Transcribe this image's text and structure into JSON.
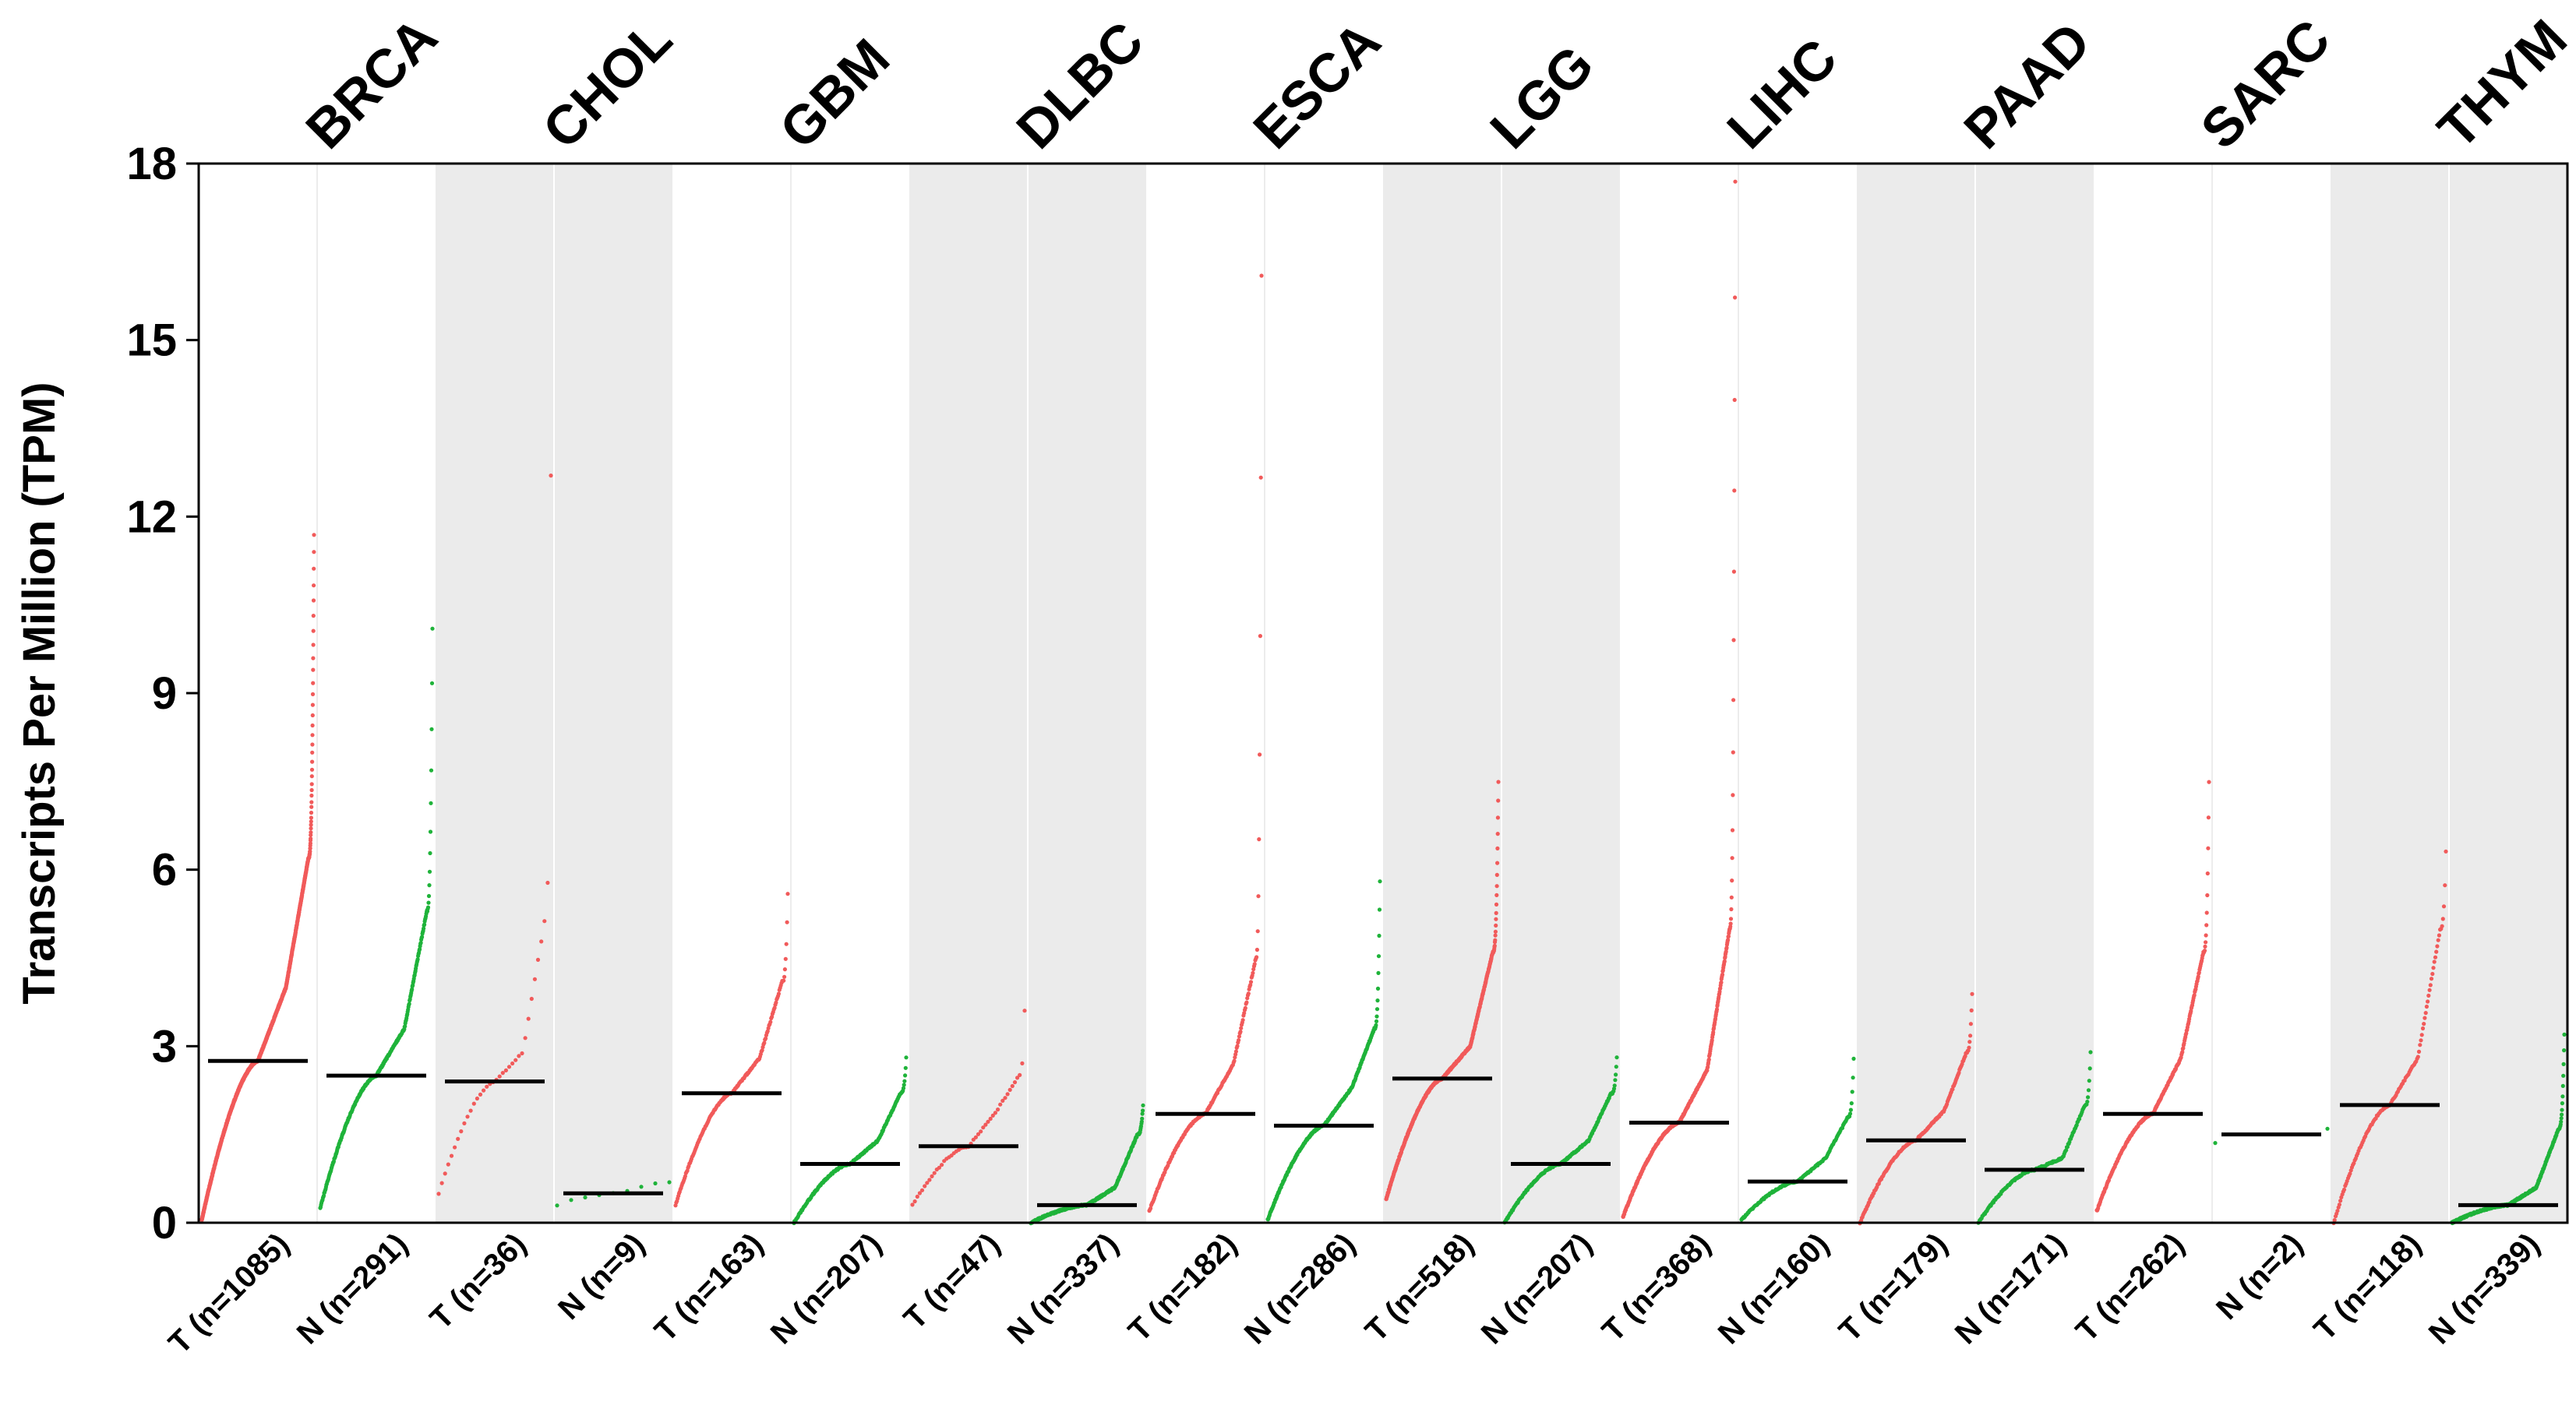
{
  "chart_data": {
    "type": "scatter",
    "subtype": "sorted-dot-strip",
    "title": "",
    "xlabel": "",
    "ylabel": "Transcripts Per Million (TPM)",
    "ylim": [
      0,
      18
    ],
    "yticks": [
      "0",
      "3",
      "6",
      "9",
      "12",
      "15",
      "18"
    ],
    "grid": false,
    "legend": "none",
    "colors": {
      "tumor": "#f15a5a",
      "normal": "#1fb33a",
      "median": "#000000",
      "shade": "#ebebeb"
    },
    "cancer_types": [
      {
        "name": "BRCA",
        "shaded": false,
        "groups": [
          {
            "label": "T (n=1085)",
            "kind": "tumor",
            "n": 1085,
            "min": 0.05,
            "median": 2.75,
            "q3": 4.0,
            "p95": 6.2,
            "max": 11.7
          },
          {
            "label": "N (n=291)",
            "kind": "normal",
            "n": 291,
            "min": 0.25,
            "median": 2.5,
            "q3": 3.3,
            "p95": 5.3,
            "max": 10.1
          }
        ]
      },
      {
        "name": "CHOL",
        "shaded": true,
        "groups": [
          {
            "label": "T (n=36)",
            "kind": "tumor",
            "n": 36,
            "min": 0.5,
            "median": 2.4,
            "q3": 2.9,
            "p95": 5.2,
            "max": 12.7
          },
          {
            "label": "N (n=9)",
            "kind": "normal",
            "n": 9,
            "min": 0.3,
            "median": 0.5,
            "q3": 0.6,
            "p95": 0.7,
            "max": 0.7
          }
        ]
      },
      {
        "name": "GBM",
        "shaded": false,
        "groups": [
          {
            "label": "T (n=163)",
            "kind": "tumor",
            "n": 163,
            "min": 0.3,
            "median": 2.2,
            "q3": 2.8,
            "p95": 4.1,
            "max": 5.6
          },
          {
            "label": "N (n=207)",
            "kind": "normal",
            "n": 207,
            "min": 0.0,
            "median": 1.0,
            "q3": 1.4,
            "p95": 2.2,
            "max": 2.8
          }
        ]
      },
      {
        "name": "DLBC",
        "shaded": true,
        "groups": [
          {
            "label": "T (n=47)",
            "kind": "tumor",
            "n": 47,
            "min": 0.3,
            "median": 1.3,
            "q3": 1.9,
            "p95": 2.5,
            "max": 3.6
          },
          {
            "label": "N (n=337)",
            "kind": "normal",
            "n": 337,
            "min": 0.0,
            "median": 0.3,
            "q3": 0.6,
            "p95": 1.5,
            "max": 2.0
          }
        ]
      },
      {
        "name": "ESCA",
        "shaded": false,
        "groups": [
          {
            "label": "T (n=182)",
            "kind": "tumor",
            "n": 182,
            "min": 0.2,
            "median": 1.85,
            "q3": 2.7,
            "p95": 4.5,
            "max": 16.1
          },
          {
            "label": "N (n=286)",
            "kind": "normal",
            "n": 286,
            "min": 0.05,
            "median": 1.65,
            "q3": 2.3,
            "p95": 3.3,
            "max": 5.8
          }
        ]
      },
      {
        "name": "LGG",
        "shaded": true,
        "groups": [
          {
            "label": "T (n=518)",
            "kind": "tumor",
            "n": 518,
            "min": 0.4,
            "median": 2.45,
            "q3": 3.0,
            "p95": 4.6,
            "max": 7.5
          },
          {
            "label": "N (n=207)",
            "kind": "normal",
            "n": 207,
            "min": 0.0,
            "median": 1.0,
            "q3": 1.4,
            "p95": 2.2,
            "max": 2.8
          }
        ]
      },
      {
        "name": "LIHC",
        "shaded": false,
        "groups": [
          {
            "label": "T (n=368)",
            "kind": "tumor",
            "n": 368,
            "min": 0.1,
            "median": 1.7,
            "q3": 2.6,
            "p95": 5.0,
            "max": 17.7
          },
          {
            "label": "N (n=160)",
            "kind": "normal",
            "n": 160,
            "min": 0.05,
            "median": 0.7,
            "q3": 1.1,
            "p95": 1.8,
            "max": 2.8
          }
        ]
      },
      {
        "name": "PAAD",
        "shaded": true,
        "groups": [
          {
            "label": "T (n=179)",
            "kind": "tumor",
            "n": 179,
            "min": 0.0,
            "median": 1.4,
            "q3": 1.9,
            "p95": 2.9,
            "max": 3.9
          },
          {
            "label": "N (n=171)",
            "kind": "normal",
            "n": 171,
            "min": 0.0,
            "median": 0.9,
            "q3": 1.1,
            "p95": 2.0,
            "max": 2.9
          }
        ]
      },
      {
        "name": "SARC",
        "shaded": false,
        "groups": [
          {
            "label": "T (n=262)",
            "kind": "tumor",
            "n": 262,
            "min": 0.2,
            "median": 1.85,
            "q3": 2.8,
            "p95": 4.6,
            "max": 7.5
          },
          {
            "label": "N (n=2)",
            "kind": "normal",
            "n": 2,
            "min": 1.35,
            "median": 1.5,
            "q3": 1.55,
            "p95": 1.6,
            "max": 1.6
          }
        ]
      },
      {
        "name": "THYM",
        "shaded": true,
        "groups": [
          {
            "label": "T (n=118)",
            "kind": "tumor",
            "n": 118,
            "min": 0.0,
            "median": 2.0,
            "q3": 2.8,
            "p95": 5.0,
            "max": 6.3
          },
          {
            "label": "N (n=339)",
            "kind": "normal",
            "n": 339,
            "min": 0.0,
            "median": 0.3,
            "q3": 0.6,
            "p95": 1.6,
            "max": 3.2
          }
        ]
      }
    ]
  }
}
